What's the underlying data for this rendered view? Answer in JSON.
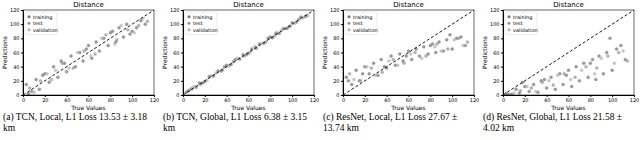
{
  "chart_data": [
    {
      "type": "scatter",
      "title": "Distance",
      "x_label": "True Values",
      "y_label": "Predictions",
      "caption": "(a) TCN, Local, L1 Loss 13.53 ± 3.18 km",
      "xlim": [
        0,
        120
      ],
      "ylim": [
        0,
        120
      ],
      "xticks": [
        0,
        20,
        40,
        60,
        80,
        100,
        120
      ],
      "yticks": [
        0,
        20,
        40,
        60,
        80,
        100,
        120
      ],
      "legend": "upper left",
      "reference_line": {
        "x": [
          0,
          120
        ],
        "y": [
          0,
          120
        ],
        "line_style": "dashed"
      },
      "series": [
        {
          "name": "training",
          "color": "#7a7a7a",
          "marker": "circle",
          "x": [
            3,
            8,
            12,
            15,
            20,
            24,
            28,
            32,
            35,
            40,
            44,
            48,
            52,
            55,
            60,
            63,
            67,
            70,
            74,
            78,
            82,
            85,
            88,
            92,
            95,
            100,
            104,
            108,
            112,
            5,
            18,
            38,
            58,
            80,
            98
          ],
          "values": [
            15,
            5,
            22,
            8,
            30,
            18,
            40,
            25,
            48,
            33,
            55,
            40,
            60,
            48,
            70,
            52,
            75,
            62,
            80,
            70,
            90,
            75,
            95,
            82,
            100,
            90,
            95,
            105,
            100,
            2,
            28,
            45,
            65,
            88,
            86
          ]
        },
        {
          "name": "test",
          "color": "#9a9a9a",
          "marker": "circle",
          "x": [
            6,
            16,
            26,
            36,
            46,
            56,
            66,
            76,
            86,
            96,
            106,
            114
          ],
          "values": [
            10,
            20,
            22,
            45,
            38,
            62,
            58,
            85,
            78,
            92,
            98,
            104
          ]
        },
        {
          "name": "validation",
          "color": "#b5b5b5",
          "marker": "circle",
          "x": [
            10,
            22,
            30,
            42,
            50,
            62,
            72,
            84,
            90,
            102,
            110
          ],
          "values": [
            4,
            30,
            35,
            38,
            60,
            55,
            80,
            72,
            98,
            88,
            108
          ]
        }
      ]
    },
    {
      "type": "scatter",
      "title": "Distance",
      "x_label": "True Values",
      "y_label": "Predictions",
      "caption": "(b) TCN, Global, L1 Loss 6.38 ± 3.15 km",
      "xlim": [
        0,
        120
      ],
      "ylim": [
        0,
        120
      ],
      "xticks": [
        0,
        20,
        40,
        60,
        80,
        100,
        120
      ],
      "yticks": [
        0,
        20,
        40,
        60,
        80,
        100,
        120
      ],
      "legend": "upper left",
      "reference_line": {
        "x": [
          0,
          120
        ],
        "y": [
          0,
          120
        ],
        "line_style": "dashed"
      },
      "series": [
        {
          "name": "training",
          "color": "#7a7a7a",
          "marker": "circle",
          "x": [
            3,
            8,
            12,
            15,
            20,
            24,
            28,
            32,
            35,
            40,
            44,
            48,
            52,
            55,
            60,
            63,
            67,
            70,
            74,
            78,
            82,
            85,
            88,
            92,
            95,
            100,
            104,
            108,
            112,
            5,
            18,
            38,
            58,
            80,
            98
          ],
          "values": [
            4,
            9,
            11,
            17,
            19,
            26,
            27,
            34,
            34,
            42,
            43,
            50,
            51,
            57,
            59,
            65,
            66,
            72,
            73,
            80,
            81,
            87,
            87,
            94,
            94,
            102,
            103,
            110,
            111,
            6,
            17,
            40,
            57,
            82,
            97
          ]
        },
        {
          "name": "test",
          "color": "#9a9a9a",
          "marker": "circle",
          "x": [
            6,
            16,
            26,
            36,
            46,
            56,
            66,
            76,
            86,
            96,
            106,
            114
          ],
          "values": [
            7,
            15,
            27,
            35,
            47,
            55,
            68,
            75,
            88,
            95,
            107,
            112
          ]
        },
        {
          "name": "validation",
          "color": "#b5b5b5",
          "marker": "circle",
          "x": [
            10,
            22,
            30,
            42,
            50,
            62,
            72,
            84,
            90,
            102,
            110
          ],
          "values": [
            12,
            21,
            31,
            41,
            52,
            61,
            73,
            83,
            91,
            101,
            109
          ]
        }
      ]
    },
    {
      "type": "scatter",
      "title": "Distance",
      "x_label": "True Values",
      "y_label": "Predictions",
      "caption": "(c) ResNet, Local, L1 Loss 27.67 ± 13.74 km",
      "xlim": [
        0,
        120
      ],
      "ylim": [
        0,
        120
      ],
      "xticks": [
        0,
        20,
        40,
        60,
        80,
        100,
        120
      ],
      "yticks": [
        0,
        20,
        40,
        60,
        80,
        100,
        120
      ],
      "legend": "upper left",
      "reference_line": {
        "x": [
          0,
          120
        ],
        "y": [
          0,
          120
        ],
        "line_style": "dashed"
      },
      "series": [
        {
          "name": "training",
          "color": "#7a7a7a",
          "marker": "circle",
          "x": [
            3,
            8,
            12,
            15,
            20,
            24,
            28,
            32,
            35,
            40,
            44,
            48,
            52,
            55,
            60,
            63,
            67,
            70,
            74,
            78,
            82,
            85,
            88,
            92,
            95,
            100,
            104,
            108,
            112,
            5,
            18,
            38,
            58,
            80,
            98
          ],
          "values": [
            25,
            15,
            35,
            20,
            40,
            30,
            45,
            28,
            50,
            38,
            55,
            42,
            58,
            48,
            62,
            50,
            65,
            55,
            68,
            58,
            72,
            60,
            75,
            62,
            78,
            65,
            80,
            82,
            70,
            20,
            30,
            40,
            55,
            70,
            85
          ]
        },
        {
          "name": "test",
          "color": "#9a9a9a",
          "marker": "circle",
          "x": [
            6,
            16,
            26,
            36,
            46,
            56,
            66,
            76,
            86,
            96,
            106,
            114
          ],
          "values": [
            30,
            20,
            38,
            32,
            50,
            45,
            60,
            55,
            72,
            65,
            80,
            75
          ]
        },
        {
          "name": "validation",
          "color": "#b5b5b5",
          "marker": "circle",
          "x": [
            10,
            22,
            30,
            42,
            50,
            62,
            72,
            84,
            90,
            102,
            110
          ],
          "values": [
            22,
            40,
            28,
            48,
            42,
            58,
            52,
            68,
            62,
            78,
            70
          ]
        }
      ]
    },
    {
      "type": "scatter",
      "title": "Distance",
      "x_label": "True Values",
      "y_label": "Predictions",
      "caption": "(d) ResNet, Global, L1 Loss 21.58 ± 4.02 km",
      "xlim": [
        0,
        120
      ],
      "ylim": [
        0,
        120
      ],
      "xticks": [
        0,
        20,
        40,
        60,
        80,
        100,
        120
      ],
      "yticks": [
        0,
        20,
        40,
        60,
        80,
        100,
        120
      ],
      "legend": "upper left",
      "reference_line": {
        "x": [
          0,
          120
        ],
        "y": [
          0,
          120
        ],
        "line_style": "dashed"
      },
      "series": [
        {
          "name": "training",
          "color": "#7a7a7a",
          "marker": "circle",
          "x": [
            3,
            8,
            12,
            15,
            20,
            24,
            28,
            32,
            35,
            40,
            44,
            48,
            52,
            55,
            60,
            63,
            67,
            70,
            74,
            78,
            82,
            85,
            88,
            92,
            95,
            100,
            104,
            108,
            112,
            5,
            18,
            38,
            58,
            80,
            98
          ],
          "values": [
            2,
            1,
            8,
            3,
            12,
            5,
            15,
            4,
            20,
            10,
            25,
            8,
            30,
            15,
            35,
            12,
            40,
            20,
            45,
            25,
            50,
            22,
            55,
            30,
            60,
            35,
            65,
            70,
            50,
            0,
            18,
            22,
            28,
            45,
            80
          ]
        },
        {
          "name": "test",
          "color": "#9a9a9a",
          "marker": "circle",
          "x": [
            6,
            16,
            26,
            36,
            46,
            56,
            66,
            76,
            86,
            96,
            106,
            114
          ],
          "values": [
            1,
            6,
            10,
            18,
            14,
            30,
            25,
            40,
            38,
            55,
            60,
            48
          ]
        },
        {
          "name": "validation",
          "color": "#b5b5b5",
          "marker": "circle",
          "x": [
            10,
            22,
            30,
            42,
            50,
            62,
            72,
            84,
            90,
            102,
            110
          ],
          "values": [
            3,
            12,
            5,
            20,
            28,
            22,
            35,
            30,
            52,
            45,
            62
          ]
        }
      ]
    }
  ]
}
